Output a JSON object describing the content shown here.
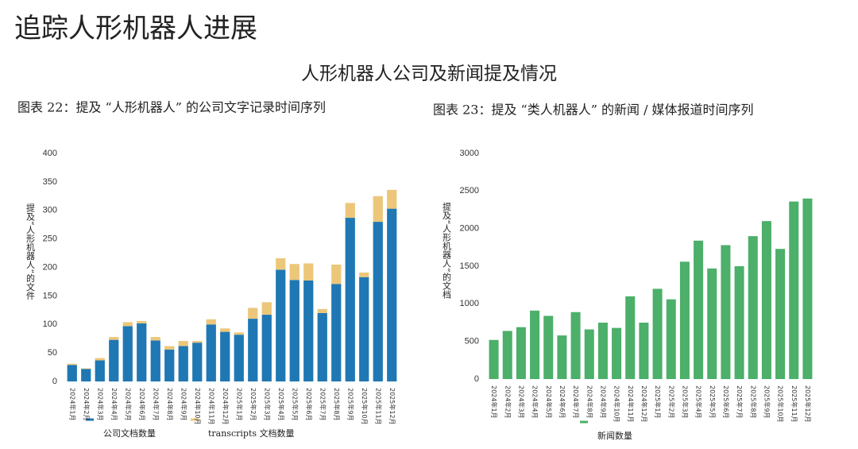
{
  "header": {
    "title": "追踪人形机器人进展",
    "subtitle": "人形机器人公司及新闻提及情况"
  },
  "chart_data": [
    {
      "type": "bar",
      "stacked": true,
      "title": "图表 22：提及 “人形机器人” 的公司文字记录时间序列",
      "y_label": "提及“人形机器人”的文件",
      "categories": [
        "2024年1月",
        "2024年2月",
        "2024年3月",
        "2024年4月",
        "2024年5月",
        "2024年6月",
        "2024年7月",
        "2024年8月",
        "2024年9月",
        "2024年10月",
        "2024年11月",
        "2024年12月",
        "2025年1月",
        "2025年2月",
        "2025年3月",
        "2025年4月",
        "2025年5月",
        "2025年6月",
        "2025年7月",
        "2025年8月",
        "2025年9月",
        "2025年10月",
        "2025年11月",
        "2025年12月"
      ],
      "series": [
        {
          "name": "公司文档数量",
          "color": "#1f78b4",
          "values": [
            29,
            22,
            37,
            73,
            97,
            102,
            72,
            56,
            62,
            68,
            100,
            87,
            82,
            110,
            117,
            196,
            178,
            177,
            120,
            171,
            287,
            183,
            280,
            303
          ]
        },
        {
          "name": "transcripts 文档数量",
          "color": "#ecc77a",
          "values": [
            2,
            1,
            4,
            5,
            7,
            4,
            6,
            6,
            9,
            3,
            9,
            6,
            4,
            19,
            22,
            20,
            28,
            30,
            7,
            34,
            26,
            8,
            45,
            33
          ]
        }
      ],
      "ylim": [
        0,
        400
      ],
      "yticks": [
        0,
        50,
        100,
        150,
        200,
        250,
        300,
        350,
        400
      ]
    },
    {
      "type": "bar",
      "title": "图表 23：提及 “类人机器人” 的新闻 / 媒体报道时间序列",
      "y_label": "提及“人形机器人”的文档",
      "categories": [
        "2024年1月",
        "2024年2月",
        "2024年3月",
        "2024年4月",
        "2024年5月",
        "2024年6月",
        "2024年7月",
        "2024年8月",
        "2024年9月",
        "2024年10月",
        "2024年11月",
        "2024年12月",
        "2025年1月",
        "2025年2月",
        "2025年3月",
        "2025年4月",
        "2025年5月",
        "2025年6月",
        "2025年7月",
        "2025年8月",
        "2025年9月",
        "2025年10月",
        "2025年11月",
        "2025年12月"
      ],
      "series": [
        {
          "name": "新闻数量",
          "color": "#4caf6a",
          "values": [
            520,
            640,
            690,
            910,
            840,
            580,
            890,
            660,
            750,
            680,
            1100,
            750,
            1200,
            1060,
            1560,
            1840,
            1470,
            1780,
            1500,
            1900,
            2100,
            1730,
            2360,
            2400
          ]
        }
      ],
      "ylim": [
        0,
        3000
      ],
      "yticks": [
        0,
        500,
        1000,
        1500,
        2000,
        2500,
        3000
      ]
    }
  ]
}
